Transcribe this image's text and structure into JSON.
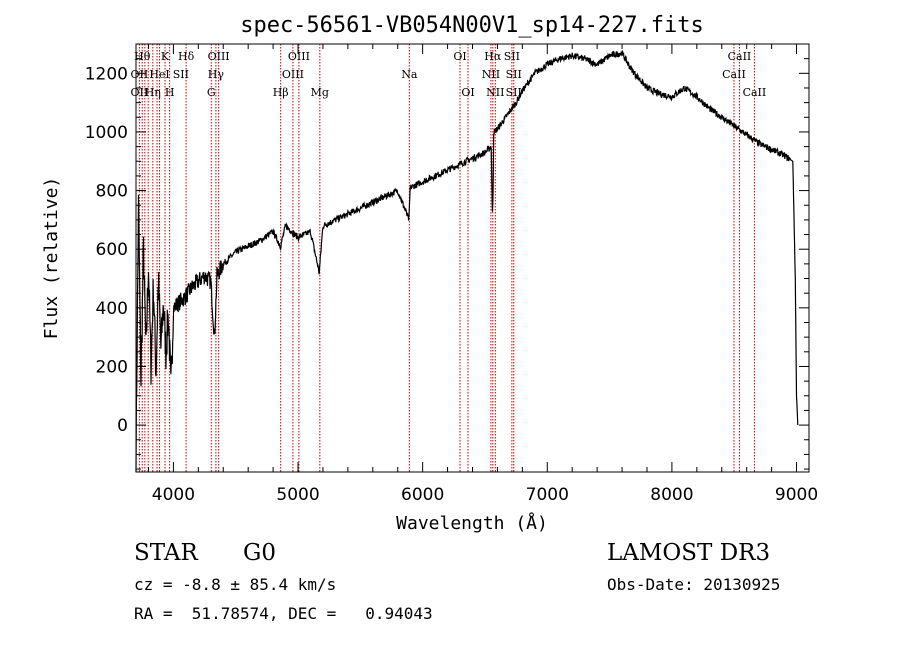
{
  "chart_data": {
    "type": "line",
    "title": "spec-56561-VB054N00V1_sp14-227.fits",
    "xlabel": "Wavelength (Å)",
    "ylabel": "Flux (relative)",
    "xlim": [
      3700,
      9100
    ],
    "ylim": [
      -160,
      1300
    ],
    "xticks": [
      4000,
      5000,
      6000,
      7000,
      8000,
      9000
    ],
    "yticks": [
      0,
      200,
      400,
      600,
      800,
      1000,
      1200
    ],
    "grid": false,
    "series": [
      {
        "name": "spectrum",
        "color": "#000000",
        "x": [
          3700,
          3720,
          3740,
          3760,
          3780,
          3800,
          3820,
          3840,
          3860,
          3880,
          3900,
          3920,
          3940,
          3960,
          3980,
          4000,
          4050,
          4100,
          4150,
          4200,
          4250,
          4300,
          4330,
          4350,
          4400,
          4500,
          4600,
          4700,
          4800,
          4860,
          4900,
          5000,
          5100,
          5170,
          5200,
          5300,
          5400,
          5500,
          5600,
          5700,
          5800,
          5890,
          5900,
          6000,
          6100,
          6200,
          6300,
          6400,
          6500,
          6550,
          6560,
          6565,
          6570,
          6600,
          6650,
          6700,
          6750,
          6800,
          6900,
          7000,
          7100,
          7200,
          7300,
          7400,
          7500,
          7600,
          7650,
          7700,
          7800,
          7900,
          8000,
          8100,
          8200,
          8300,
          8400,
          8500,
          8600,
          8700,
          8800,
          8900,
          8970,
          8990,
          9000,
          9010
        ],
        "y": [
          -100,
          750,
          150,
          600,
          250,
          550,
          200,
          480,
          180,
          500,
          260,
          420,
          250,
          380,
          120,
          400,
          420,
          440,
          470,
          490,
          510,
          490,
          300,
          510,
          550,
          590,
          610,
          630,
          660,
          610,
          680,
          640,
          660,
          520,
          680,
          700,
          720,
          740,
          760,
          780,
          800,
          700,
          810,
          830,
          850,
          870,
          890,
          910,
          930,
          950,
          720,
          800,
          1000,
          1010,
          1040,
          1070,
          1100,
          1140,
          1200,
          1230,
          1250,
          1260,
          1250,
          1230,
          1260,
          1270,
          1230,
          1200,
          1150,
          1130,
          1120,
          1150,
          1120,
          1080,
          1050,
          1020,
          990,
          960,
          940,
          920,
          900,
          500,
          100,
          0
        ]
      }
    ],
    "line_markers": {
      "color": "#cc0000",
      "wavelengths": [
        3727,
        3750,
        3771,
        3798,
        3835,
        3869,
        3889,
        3933,
        3970,
        4102,
        4304,
        4341,
        4363,
        4861,
        4959,
        5007,
        5175,
        5893,
        6300,
        6364,
        6548,
        6563,
        6583,
        6716,
        6731,
        8498,
        8542,
        8662
      ]
    },
    "line_labels": [
      {
        "text": "Hθ",
        "x": 3750,
        "row": 0
      },
      {
        "text": "K",
        "x": 3933,
        "row": 0
      },
      {
        "text": "Hδ",
        "x": 4102,
        "row": 0
      },
      {
        "text": "OIII",
        "x": 4363,
        "row": 0
      },
      {
        "text": "OIII",
        "x": 5007,
        "row": 0
      },
      {
        "text": "OI",
        "x": 6300,
        "row": 0
      },
      {
        "text": "Hα",
        "x": 6563,
        "row": 0
      },
      {
        "text": "SII",
        "x": 6716,
        "row": 0
      },
      {
        "text": "CaII",
        "x": 8542,
        "row": 0
      },
      {
        "text": "OII",
        "x": 3727,
        "row": 1
      },
      {
        "text": "HeI",
        "x": 3889,
        "row": 1
      },
      {
        "text": "SII",
        "x": 4060,
        "row": 1
      },
      {
        "text": "Hγ",
        "x": 4341,
        "row": 1
      },
      {
        "text": "OIII",
        "x": 4959,
        "row": 1
      },
      {
        "text": "Na",
        "x": 5893,
        "row": 1
      },
      {
        "text": "NII",
        "x": 6548,
        "row": 1
      },
      {
        "text": "SII",
        "x": 6731,
        "row": 1
      },
      {
        "text": "CaII",
        "x": 8498,
        "row": 1
      },
      {
        "text": "OII",
        "x": 3727,
        "row": 2
      },
      {
        "text": "Hη",
        "x": 3835,
        "row": 2
      },
      {
        "text": "H",
        "x": 3970,
        "row": 2
      },
      {
        "text": "G",
        "x": 4304,
        "row": 2
      },
      {
        "text": "Hβ",
        "x": 4861,
        "row": 2
      },
      {
        "text": "Mg",
        "x": 5175,
        "row": 2
      },
      {
        "text": "OI",
        "x": 6364,
        "row": 2
      },
      {
        "text": "NII",
        "x": 6583,
        "row": 2
      },
      {
        "text": "SII",
        "x": 6731,
        "row": 2
      },
      {
        "text": "CaII",
        "x": 8662,
        "row": 2
      }
    ]
  },
  "info": {
    "object_class": "STAR",
    "subclass": "G0",
    "survey": "LAMOST DR3",
    "redshift": "cz = -8.8 ± 85.4 km/s",
    "obs_date": "Obs-Date: 20130925",
    "coords": "RA =  51.78574, DEC =   0.94043"
  }
}
